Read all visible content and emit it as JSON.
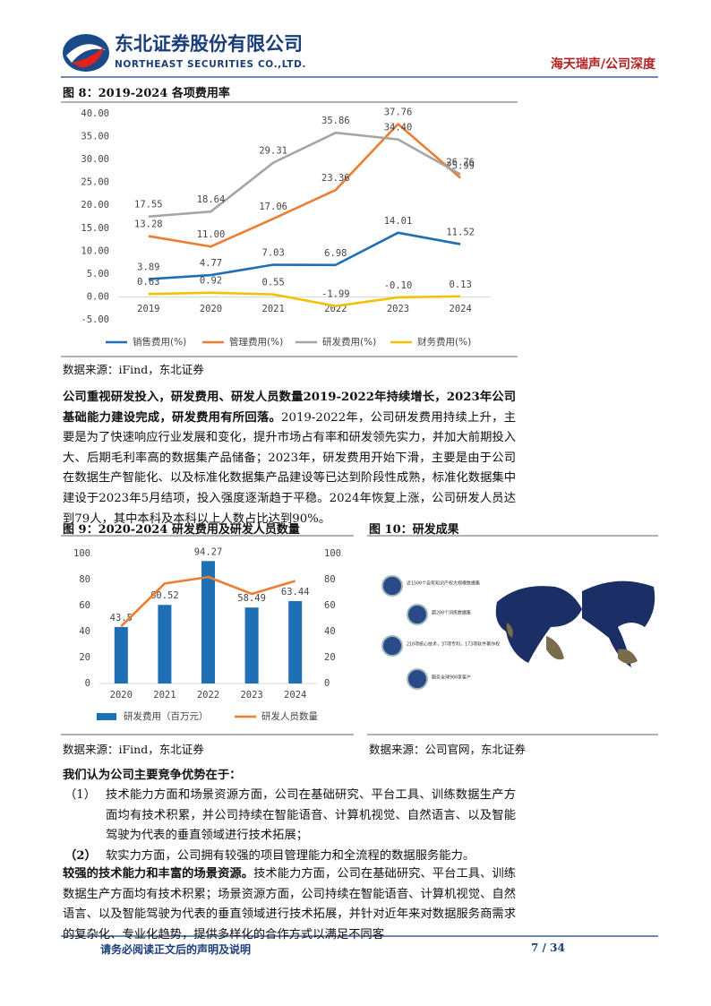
{
  "header": {
    "company": "东北证券股份有限公司",
    "company_en": "NORTHEAST SECURITIES CO.,LTD.",
    "report": "海天瑞声/公司深度"
  },
  "figures": [
    {
      "title": "图 8：2019-2024 各项费用率",
      "source": "数据来源：iFind，东北证券"
    },
    {
      "title": "图 9：2020-2024 研发费用及研发人员数量",
      "source": "数据来源：iFind，东北证券"
    },
    {
      "title": "图 10：研发成果",
      "source": "数据来源：公司官网，东北证券"
    }
  ],
  "figure10_image": {
    "labels": [
      "近1500个自有知识产权大规模数据集",
      "超200个训练数据集",
      "210项核心技术，37项专利，173项软件著作权",
      "服务全球900家客户"
    ]
  },
  "paragraphs": [
    {
      "lead": "公司重视研发投入，研发费用、研发人员数量2019-2022年持续增长，2023年公司基础能力建设完成，研发费用有所回落。",
      "text": "2019-2022年，公司研发费用持续上升，主要是为了快速响应行业发展和变化，提升市场占有率和研发领先实力，并加大前期投入大、后期毛利率高的数据集产品储备；2023年，研发费用开始下滑，主要是由于公司在数据生产智能化、以及标准化数据集产品建设等已达到阶段性成熟，标准化数据集中建设于2023年5月结项，投入强度逐渐趋于平稳。2024年恢复上涨，公司研发人员达到79人，其中本科及本科以上人数占比达到90%。"
    },
    {
      "lead": "较强的技术能力和丰富的场景资源。",
      "text": "技术能力方面，公司在基础研究、平台工具、训练数据生产方面均有技术积累；场景资源方面，公司持续在智能语音、计算机视觉、自然语言、以及智能驾驶为代表的垂直领域进行技术拓展，并针对近年来对数据服务商需求的复杂化、专业化趋势，提供多样化的合作方式以满足不同客"
    }
  ],
  "advantages": {
    "intro": "我们认为公司主要竞争优势在于：",
    "items": [
      {
        "num": "（1）",
        "text": "技术能力方面和场景资源方面，公司在基础研究、平台工具、训练数据生产方面均有技术积累，并公司持续在智能语音、计算机视觉、自然语言、以及智能驾驶为代表的垂直领域进行技术拓展；"
      },
      {
        "num": "（2）",
        "text": "软实力方面，公司拥有较强的项目管理能力和全流程的数据服务能力。"
      }
    ]
  },
  "footer": {
    "disclaimer": "请务必阅读正文后的声明及说明",
    "page": "7 / 34"
  },
  "chart_data": [
    {
      "type": "line",
      "categories": [
        "2019",
        "2020",
        "2021",
        "2022",
        "2023",
        "2024"
      ],
      "ylim": [
        -5,
        40
      ],
      "yticks": [
        {
          "value": -5,
          "label": "-5.00"
        },
        {
          "value": 0,
          "label": "0.00"
        },
        {
          "value": 5,
          "label": "5.00"
        },
        {
          "value": 10,
          "label": "10.00"
        },
        {
          "value": 15,
          "label": "15.00"
        },
        {
          "value": 20,
          "label": "20.00"
        },
        {
          "value": 25,
          "label": "25.00"
        },
        {
          "value": 30,
          "label": "30.00"
        },
        {
          "value": 35,
          "label": "35.00"
        },
        {
          "value": 40,
          "label": "40.00"
        }
      ],
      "grid": false,
      "legend": "bottom",
      "series": [
        {
          "name": "销售费用(%)",
          "color": "#1f6fb5",
          "values": [
            3.89,
            4.77,
            7.03,
            6.98,
            14.01,
            11.52
          ],
          "value_labels": [
            "3.89",
            "4.77",
            "7.03",
            "6.98",
            "14.01",
            "11.52"
          ]
        },
        {
          "name": "管理费用(%)",
          "color": "#ed7d31",
          "values": [
            13.28,
            11.0,
            17.06,
            23.36,
            37.76,
            25.99
          ],
          "value_labels": [
            "13.28",
            "11.00",
            "17.06",
            "23.36",
            "37.76",
            "25.99"
          ]
        },
        {
          "name": "研发费用(%)",
          "color": "#a5a5a5",
          "values": [
            17.55,
            18.64,
            29.31,
            35.86,
            34.4,
            26.76
          ],
          "value_labels": [
            "17.55",
            "18.64",
            "29.31",
            "35.86",
            "34.40",
            "26.76"
          ]
        },
        {
          "name": "财务费用(%)",
          "color": "#f5c000",
          "values": [
            0.63,
            0.92,
            0.55,
            -1.99,
            -0.1,
            0.13
          ],
          "value_labels": [
            "0.63",
            "0.92",
            "0.55",
            "-1.99",
            "-0.10",
            "0.13"
          ]
        }
      ]
    },
    {
      "type": "bar",
      "categories": [
        "2020",
        "2021",
        "2022",
        "2023",
        "2024"
      ],
      "ylim": [
        0,
        100
      ],
      "yticks": [
        0,
        20,
        40,
        60,
        80,
        100
      ],
      "y2lim": [
        0,
        100
      ],
      "y2ticks": [
        0,
        20,
        40,
        60,
        80,
        100
      ],
      "grid": false,
      "legend": "bottom",
      "series": [
        {
          "name": "研发费用（百万元）",
          "type": "bar",
          "color": "#1f6fb5",
          "values": [
            43.5,
            60.52,
            94.27,
            58.49,
            63.44
          ]
        },
        {
          "name": "研发人员数量",
          "type": "line",
          "axis": "y2",
          "color": "#ed7d31",
          "values": [
            44,
            77,
            82,
            69,
            79
          ]
        }
      ]
    }
  ]
}
